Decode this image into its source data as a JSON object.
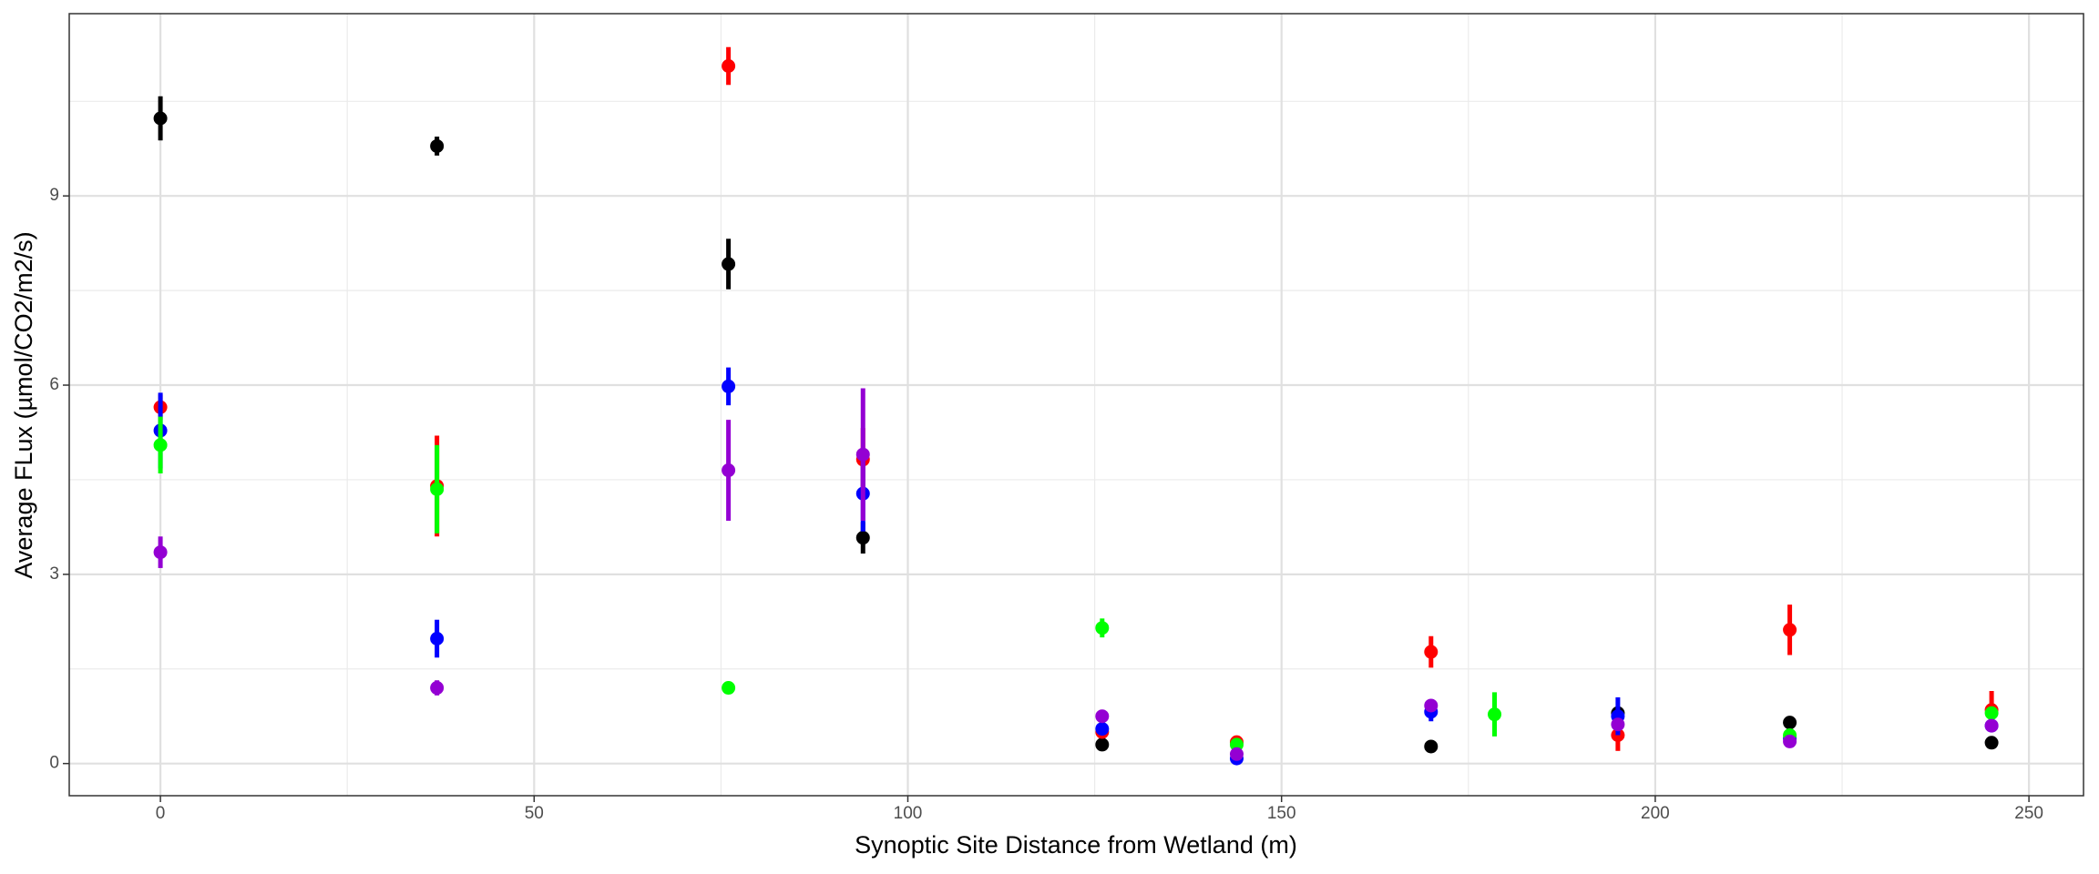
{
  "chart_data": {
    "type": "scatter",
    "x_label": "Synoptic Site Distance from Wetland (m)",
    "y_label": "Average FLux (µmol/CO2/m2/s)",
    "x": [
      0,
      37,
      76,
      94,
      126,
      144,
      170,
      178.5,
      195,
      218,
      245
    ],
    "series": [
      {
        "color": "#000000",
        "values": [
          10.23,
          9.79,
          7.92,
          3.58,
          0.3,
          null,
          0.27,
          null,
          0.8,
          0.65,
          0.33
        ],
        "errors": [
          0.35,
          0.15,
          0.4,
          0.25,
          0.05,
          null,
          0.05,
          null,
          0.1,
          0.05,
          0.05
        ]
      },
      {
        "color": "#ff0000",
        "values": [
          5.65,
          4.4,
          11.06,
          4.82,
          0.5,
          0.34,
          1.77,
          null,
          0.45,
          2.12,
          0.85
        ],
        "errors": [
          0.2,
          0.8,
          0.3,
          0.5,
          0.1,
          0.05,
          0.25,
          null,
          0.25,
          0.4,
          0.3
        ]
      },
      {
        "color": "#0000ff",
        "values": [
          5.28,
          1.98,
          5.98,
          4.28,
          0.55,
          0.08,
          0.82,
          null,
          0.75,
          0.4,
          0.6
        ],
        "errors": [
          0.6,
          0.3,
          0.3,
          0.6,
          0.1,
          0.05,
          0.15,
          null,
          0.3,
          0.05,
          0.1
        ]
      },
      {
        "color": "#00ff00",
        "values": [
          5.05,
          4.35,
          1.2,
          null,
          2.15,
          0.3,
          null,
          0.78,
          null,
          0.45,
          0.8
        ],
        "errors": [
          0.45,
          0.7,
          0.05,
          null,
          0.15,
          0.05,
          null,
          0.35,
          null,
          0.05,
          0.1
        ]
      },
      {
        "color": "#9400d3",
        "values": [
          3.35,
          1.2,
          4.65,
          4.9,
          0.75,
          0.15,
          0.92,
          null,
          0.62,
          0.35,
          0.6
        ],
        "errors": [
          0.25,
          0.12,
          0.8,
          1.05,
          0.1,
          0.05,
          0.1,
          null,
          0.1,
          0.05,
          0.1
        ]
      }
    ],
    "xlim": [
      -12.2,
      257.3
    ],
    "ylim": [
      -0.51,
      11.89
    ],
    "xticks": [
      0,
      50,
      100,
      150,
      200,
      250
    ],
    "yticks": [
      0,
      3,
      6,
      9
    ],
    "xminor": [
      25,
      75,
      125,
      175,
      225
    ],
    "yminor": [
      1.5,
      4.5,
      7.5,
      10.5
    ],
    "grid": true
  }
}
